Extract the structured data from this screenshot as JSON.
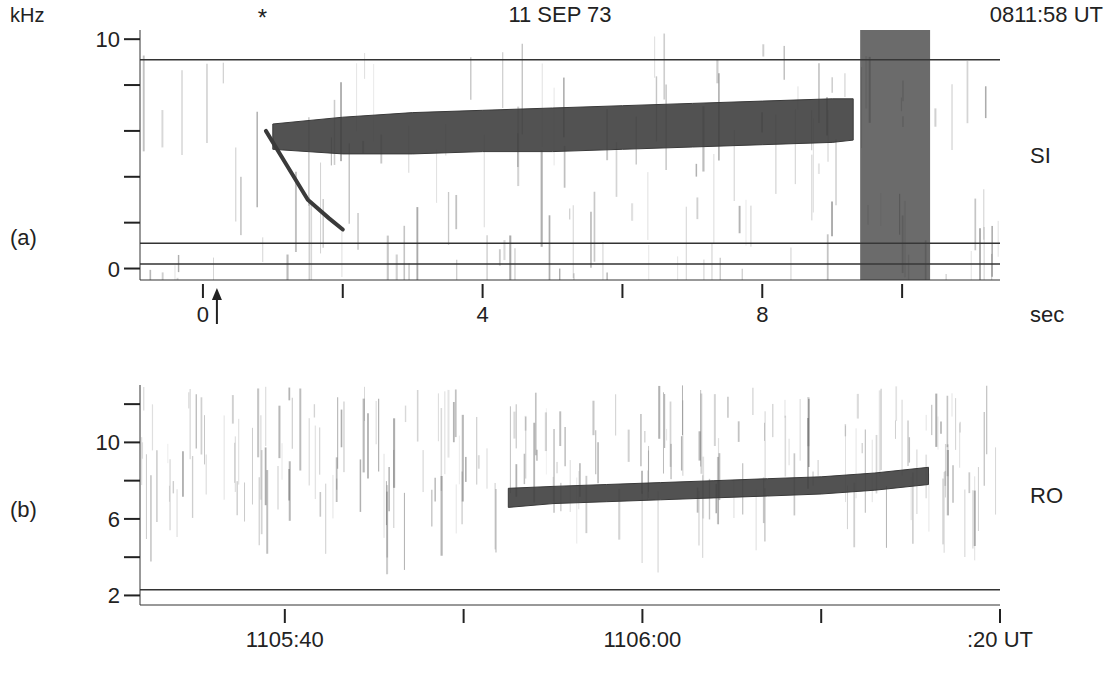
{
  "chart_data": [
    {
      "type": "spectrogram",
      "panel": "(a)",
      "station": "SI",
      "title": "11 SEP 73",
      "subtitle": "0811:58 UT",
      "y_label": "kHz",
      "x_label": "sec",
      "xlim": [
        -0.9,
        11.4
      ],
      "ylim": [
        -0.5,
        10.4
      ],
      "xticks": [
        0,
        4,
        8
      ],
      "minor_xticks": [
        2,
        6,
        10
      ],
      "yticks": [
        0,
        10
      ],
      "minor_yticks": [
        2,
        4,
        6,
        8
      ],
      "color": "#3a3a3a",
      "band": {
        "x": [
          1.0,
          2,
          3,
          4,
          5,
          6,
          7,
          8,
          9,
          9.3
        ],
        "low": [
          5.2,
          5.0,
          5.0,
          5.1,
          5.1,
          5.2,
          5.3,
          5.4,
          5.5,
          5.6
        ],
        "high": [
          6.3,
          6.6,
          6.8,
          6.9,
          7.0,
          7.1,
          7.2,
          7.3,
          7.4,
          7.4
        ]
      },
      "whistler": {
        "x": [
          0.9,
          1.2,
          1.5,
          1.8,
          2.0
        ],
        "y": [
          6.0,
          4.5,
          3.0,
          2.2,
          1.7
        ]
      },
      "burst": [
        9.4,
        10.4
      ],
      "horizontal_lines": [
        9.1,
        1.1,
        0.2
      ],
      "annotations": [
        {
          "text": "*",
          "x": 0.85
        }
      ],
      "arrow_x": 0.2
    },
    {
      "type": "spectrogram",
      "panel": "(b)",
      "station": "RO",
      "xlim": [
        31.9,
        80
      ],
      "ylim": [
        1.5,
        13
      ],
      "xticks": [
        {
          "value": 40,
          "label": "1105:40"
        },
        {
          "value": 60,
          "label": "1106:00"
        },
        {
          "value": 80,
          "label": ":20 UT"
        }
      ],
      "minor_xticks": [
        50,
        70
      ],
      "yticks": [
        2,
        6,
        10
      ],
      "minor_yticks": [
        4,
        8,
        12
      ],
      "color": "#3a3a3a",
      "band": {
        "x": [
          52.5,
          55,
          58,
          61,
          64,
          67,
          70,
          73,
          76
        ],
        "low": [
          6.6,
          6.8,
          6.9,
          7.0,
          7.1,
          7.2,
          7.3,
          7.5,
          7.8
        ],
        "high": [
          7.6,
          7.7,
          7.8,
          7.9,
          8.0,
          8.1,
          8.2,
          8.4,
          8.7
        ]
      },
      "horizontal_lines": [
        2.3
      ]
    }
  ]
}
